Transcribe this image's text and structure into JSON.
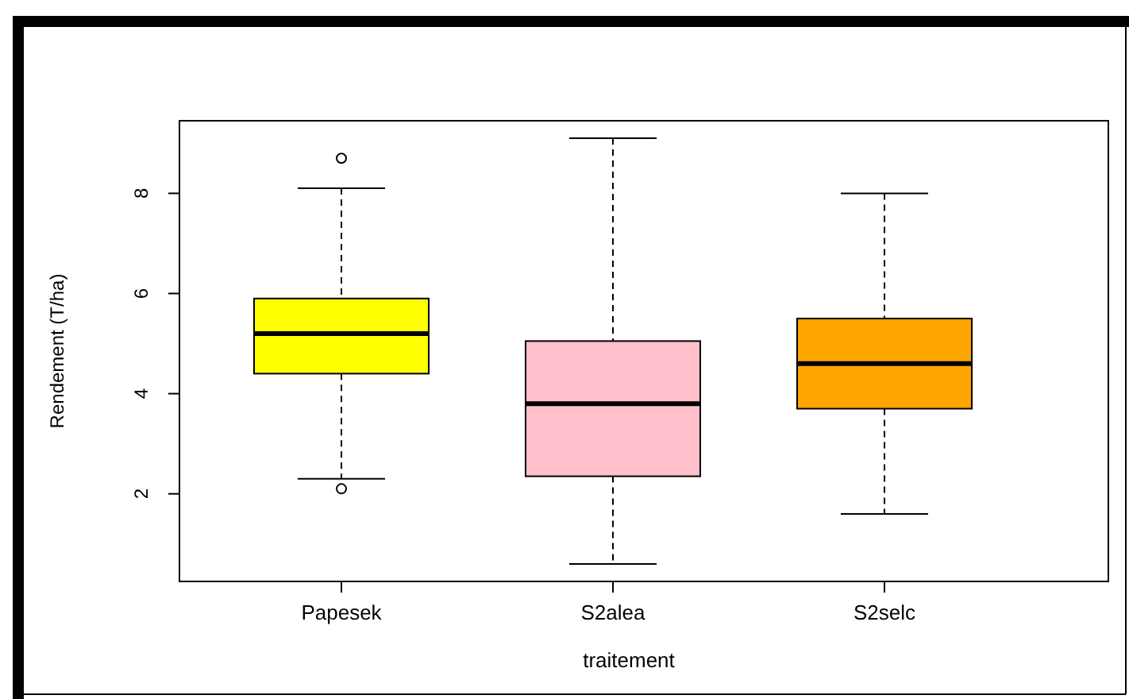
{
  "chart_data": {
    "type": "box",
    "xlabel": "traitement",
    "ylabel": "Rendement (T/ha)",
    "categories": [
      "Papesek",
      "S2alea",
      "S2selc"
    ],
    "colors": [
      "#ffff00",
      "#ffc0cb",
      "#ffa500"
    ],
    "boxes": [
      {
        "low": 2.3,
        "q1": 4.4,
        "median": 5.2,
        "q3": 5.9,
        "high": 8.1,
        "outliers": [
          8.7,
          2.1
        ]
      },
      {
        "low": 0.6,
        "q1": 2.35,
        "median": 3.8,
        "q3": 5.05,
        "high": 9.1
      },
      {
        "low": 1.6,
        "q1": 3.7,
        "median": 4.6,
        "q3": 5.5,
        "high": 8.0
      }
    ],
    "ylim": [
      0.25,
      9.45
    ],
    "yticks": [
      2,
      4,
      6,
      8
    ],
    "grid": false
  }
}
